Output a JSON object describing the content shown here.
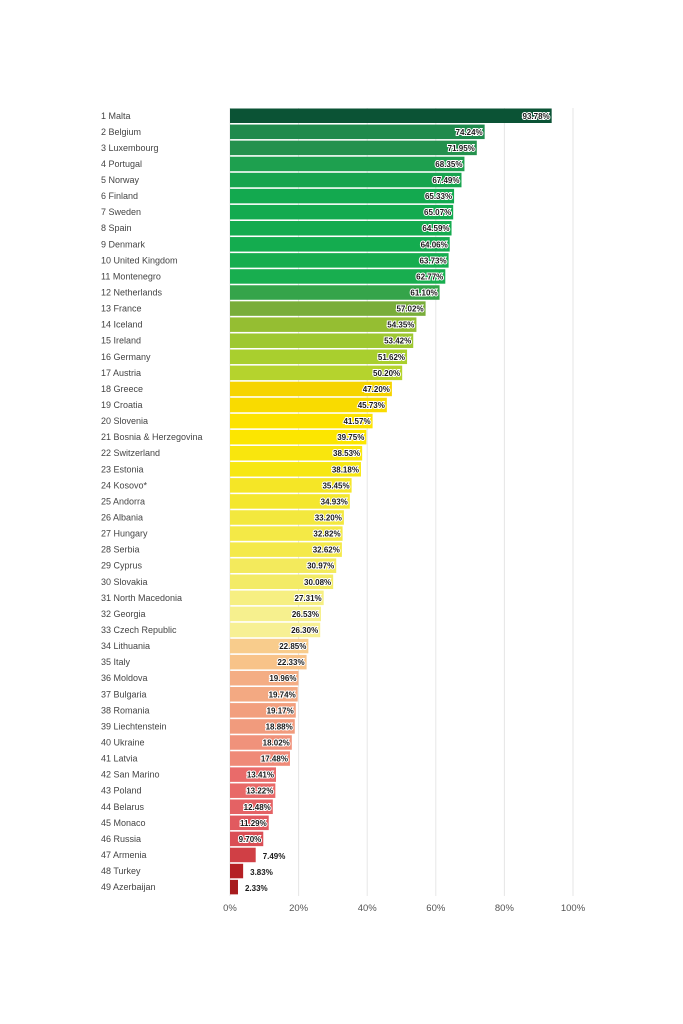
{
  "chart_data": {
    "type": "bar",
    "orientation": "horizontal",
    "categories": [
      "1 Malta",
      "2 Belgium",
      "3 Luxembourg",
      "4 Portugal",
      "5 Norway",
      "6 Finland",
      "7 Sweden",
      "8 Spain",
      "9 Denmark",
      "10 United Kingdom",
      "11 Montenegro",
      "12 Netherlands",
      "13 France",
      "14 Iceland",
      "15 Ireland",
      "16 Germany",
      "17 Austria",
      "18 Greece",
      "19 Croatia",
      "20 Slovenia",
      "21 Bosnia & Herzegovina",
      "22 Switzerland",
      "23 Estonia",
      "24 Kosovo*",
      "25 Andorra",
      "26 Albania",
      "27 Hungary",
      "28 Serbia",
      "29 Cyprus",
      "30 Slovakia",
      "31 North Macedonia",
      "32 Georgia",
      "33 Czech Republic",
      "34 Lithuania",
      "35 Italy",
      "36 Moldova",
      "37 Bulgaria",
      "38 Romania",
      "39 Liechtenstein",
      "40 Ukraine",
      "41 Latvia",
      "42 San Marino",
      "43 Poland",
      "44 Belarus",
      "45 Monaco",
      "46 Russia",
      "47 Armenia",
      "48 Turkey",
      "49 Azerbaijan"
    ],
    "values": [
      93.78,
      74.24,
      71.95,
      68.35,
      67.49,
      65.33,
      65.07,
      64.59,
      64.06,
      63.73,
      62.77,
      61.1,
      57.02,
      54.35,
      53.42,
      51.62,
      50.2,
      47.2,
      45.73,
      41.57,
      39.75,
      38.53,
      38.18,
      35.45,
      34.93,
      33.2,
      32.82,
      32.62,
      30.97,
      30.08,
      27.31,
      26.53,
      26.3,
      22.85,
      22.33,
      19.96,
      19.74,
      19.17,
      18.88,
      18.02,
      17.48,
      13.41,
      13.22,
      12.48,
      11.29,
      9.7,
      7.49,
      3.83,
      2.33
    ],
    "value_labels": [
      "93.78%",
      "74.24%",
      "71.95%",
      "68.35%",
      "67.49%",
      "65.33%",
      "65.07%",
      "64.59%",
      "64.06%",
      "63.73%",
      "62.77%",
      "61.10%",
      "57.02%",
      "54.35%",
      "53.42%",
      "51.62%",
      "50.20%",
      "47.20%",
      "45.73%",
      "41.57%",
      "39.75%",
      "38.53%",
      "38.18%",
      "35.45%",
      "34.93%",
      "33.20%",
      "32.82%",
      "32.62%",
      "30.97%",
      "30.08%",
      "27.31%",
      "26.53%",
      "26.30%",
      "22.85%",
      "22.33%",
      "19.96%",
      "19.74%",
      "19.17%",
      "18.88%",
      "18.02%",
      "17.48%",
      "13.41%",
      "13.22%",
      "12.48%",
      "11.29%",
      "9.70%",
      "7.49%",
      "3.83%",
      "2.33%"
    ],
    "colors": [
      "#0b5335",
      "#1f8a4c",
      "#24914d",
      "#1ea04f",
      "#17a44e",
      "#13a94f",
      "#13aa4f",
      "#14ab4f",
      "#14ac4f",
      "#16ad4f",
      "#18ae4f",
      "#35a44a",
      "#79ad3a",
      "#95be32",
      "#9ec830",
      "#a9cf2e",
      "#b5d32d",
      "#f6d400",
      "#f9db00",
      "#fde300",
      "#fce600",
      "#f9e60d",
      "#f7e712",
      "#f5e626",
      "#f4e72e",
      "#f3e83e",
      "#f4e946",
      "#f4e94a",
      "#f3ea5c",
      "#f3eb66",
      "#f6ef82",
      "#f6f08e",
      "#f7f094",
      "#f8cc8c",
      "#f8c389",
      "#f4ad84",
      "#f3a982",
      "#f29f7e",
      "#f19b7d",
      "#f0927b",
      "#ef8a78",
      "#e96b6a",
      "#e86968",
      "#e46264",
      "#e15a5f",
      "#da4e55",
      "#d03f45",
      "#b52024",
      "#a81c1e"
    ],
    "xlim": [
      0,
      100
    ],
    "xticks": [
      "0%",
      "20%",
      "40%",
      "60%",
      "80%",
      "100%"
    ],
    "grid": true
  }
}
